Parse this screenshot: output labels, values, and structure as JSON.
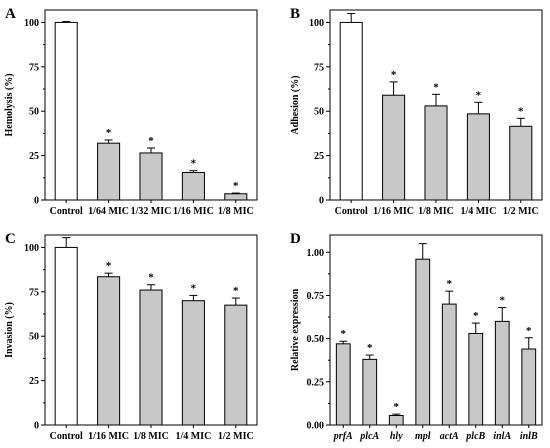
{
  "chart_data": [
    {
      "type": "bar",
      "panel": "A",
      "ylabel": "Hemolysis (%)",
      "yticks": [
        0,
        25,
        50,
        75,
        100
      ],
      "ylim": [
        0,
        107
      ],
      "categories": [
        "Control",
        "1/64 MIC",
        "1/32 MIC",
        "1/16 MIC",
        "1/8 MIC"
      ],
      "values": [
        100,
        32,
        26.5,
        15.5,
        3.5
      ],
      "errors": [
        0.5,
        1.8,
        2.8,
        1.0,
        0.4
      ],
      "significant": [
        false,
        true,
        true,
        true,
        true
      ],
      "significance_mark": "*",
      "italic_categories": false
    },
    {
      "type": "bar",
      "panel": "B",
      "ylabel": "Adhesion (%)",
      "yticks": [
        0,
        25,
        50,
        75,
        100
      ],
      "ylim": [
        0,
        107
      ],
      "categories": [
        "Control",
        "1/16 MIC",
        "1/8 MIC",
        "1/4 MIC",
        "1/2 MIC"
      ],
      "values": [
        100,
        59,
        53,
        48.5,
        41.5
      ],
      "errors": [
        5,
        7.5,
        6.5,
        6.5,
        4.5
      ],
      "significant": [
        false,
        true,
        true,
        true,
        true
      ],
      "significance_mark": "*",
      "italic_categories": false
    },
    {
      "type": "bar",
      "panel": "C",
      "ylabel": "Invasion (%)",
      "yticks": [
        0,
        25,
        50,
        75,
        100
      ],
      "ylim": [
        0,
        107
      ],
      "categories": [
        "Control",
        "1/16 MIC",
        "1/8 MIC",
        "1/4 MIC",
        "1/2 MIC"
      ],
      "values": [
        100,
        83.5,
        76,
        70,
        67.5
      ],
      "errors": [
        5.5,
        2,
        3,
        3,
        4
      ],
      "significant": [
        false,
        true,
        true,
        true,
        true
      ],
      "significance_mark": "*",
      "italic_categories": false
    },
    {
      "type": "bar",
      "panel": "D",
      "ylabel": "Relative expression",
      "yticks": [
        0.0,
        0.25,
        0.5,
        0.75,
        1.0
      ],
      "ytick_labels": [
        "0.00",
        "0.25",
        "0.50",
        "0.75",
        "1.00"
      ],
      "ylim": [
        0,
        1.1
      ],
      "categories": [
        "prfA",
        "plcA",
        "hly",
        "mpl",
        "actA",
        "plcB",
        "inlA",
        "inlB"
      ],
      "values": [
        0.47,
        0.38,
        0.055,
        0.96,
        0.7,
        0.53,
        0.6,
        0.44
      ],
      "errors": [
        0.015,
        0.025,
        0.008,
        0.09,
        0.075,
        0.06,
        0.08,
        0.065
      ],
      "significant": [
        true,
        true,
        true,
        false,
        true,
        true,
        true,
        true
      ],
      "significance_mark": "*",
      "italic_categories": true
    }
  ],
  "colors": {
    "control_bar": "#ffffff",
    "treatment_bar": "#c8c8c8",
    "stroke": "#000000"
  }
}
